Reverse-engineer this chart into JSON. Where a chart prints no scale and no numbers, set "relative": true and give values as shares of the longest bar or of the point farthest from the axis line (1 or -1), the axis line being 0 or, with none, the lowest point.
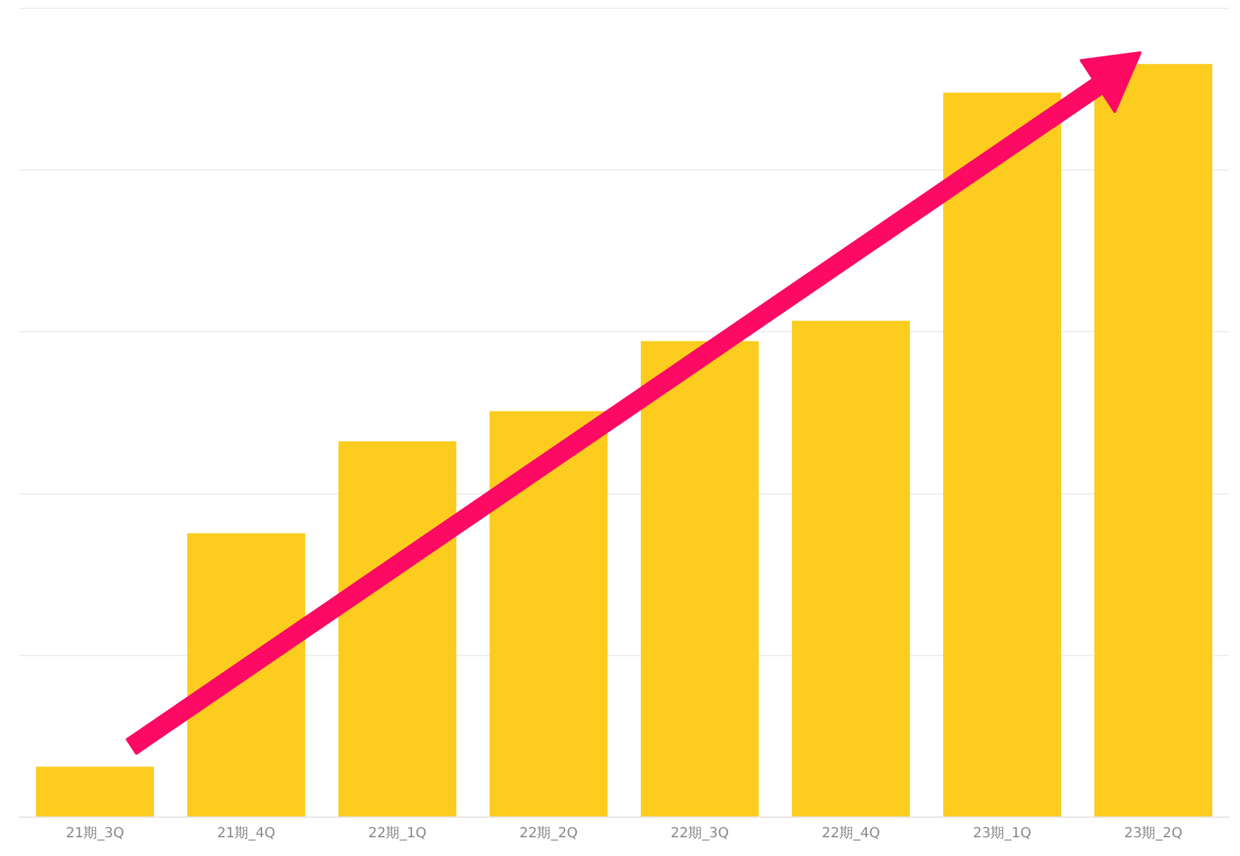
{
  "chart_data": {
    "type": "bar",
    "relative": true,
    "categories": [
      "21期_3Q",
      "21期_4Q",
      "22期_1Q",
      "22期_2Q",
      "22期_3Q",
      "22期_4Q",
      "23期_1Q",
      "23期_2Q"
    ],
    "values": [
      0.067,
      0.377,
      0.499,
      0.539,
      0.632,
      0.659,
      0.962,
      1
    ],
    "color": "#fccc1f",
    "grid": "y",
    "legend": false
  }
}
